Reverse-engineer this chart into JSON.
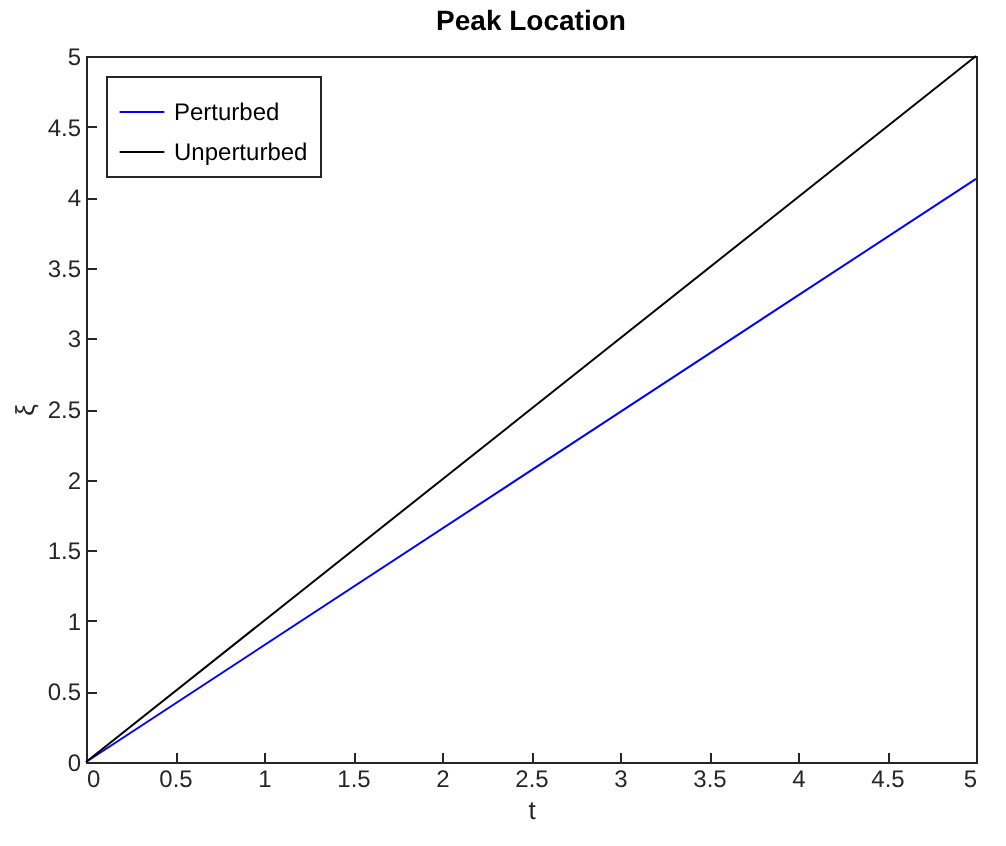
{
  "chart_data": {
    "type": "line",
    "title": "Peak Location",
    "xlabel": "t",
    "ylabel": "ξ",
    "x": [
      0,
      5
    ],
    "series": [
      {
        "name": "Perturbed",
        "color": "#0000ff",
        "values": [
          0,
          4.13
        ]
      },
      {
        "name": "Unperturbed",
        "color": "#000000",
        "values": [
          0,
          5
        ]
      }
    ],
    "xlim": [
      0,
      5
    ],
    "ylim": [
      0,
      5
    ],
    "xticks": [
      0,
      0.5,
      1,
      1.5,
      2,
      2.5,
      3,
      3.5,
      4,
      4.5,
      5
    ],
    "yticks": [
      0,
      0.5,
      1,
      1.5,
      2,
      2.5,
      3,
      3.5,
      4,
      4.5,
      5
    ],
    "grid": false,
    "legend": "top left",
    "line_style": "solid",
    "marker": "none"
  }
}
